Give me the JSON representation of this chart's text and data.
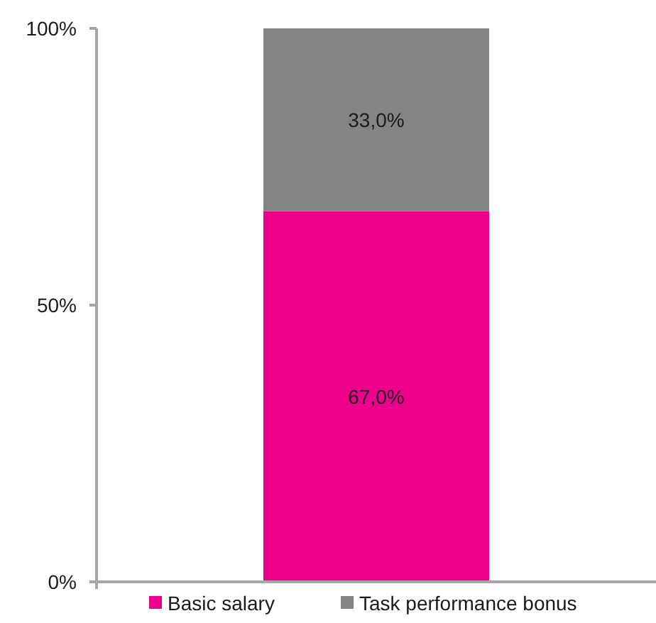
{
  "chart_data": {
    "type": "bar",
    "stacked": true,
    "categories": [
      null
    ],
    "series": [
      {
        "name": "Basic salary",
        "color": "#ec008c",
        "values": [
          67.0
        ],
        "value_labels": [
          "67,0%"
        ]
      },
      {
        "name": "Task performance bonus",
        "color": "#838486",
        "values": [
          33.0
        ],
        "value_labels": [
          "33,0%"
        ]
      }
    ],
    "ylim": [
      0,
      100
    ],
    "yticks": [
      {
        "value": 0,
        "label": "0%"
      },
      {
        "value": 50,
        "label": "50%"
      },
      {
        "value": 100,
        "label": "100%"
      }
    ],
    "grid": false,
    "legend": "bottom"
  }
}
